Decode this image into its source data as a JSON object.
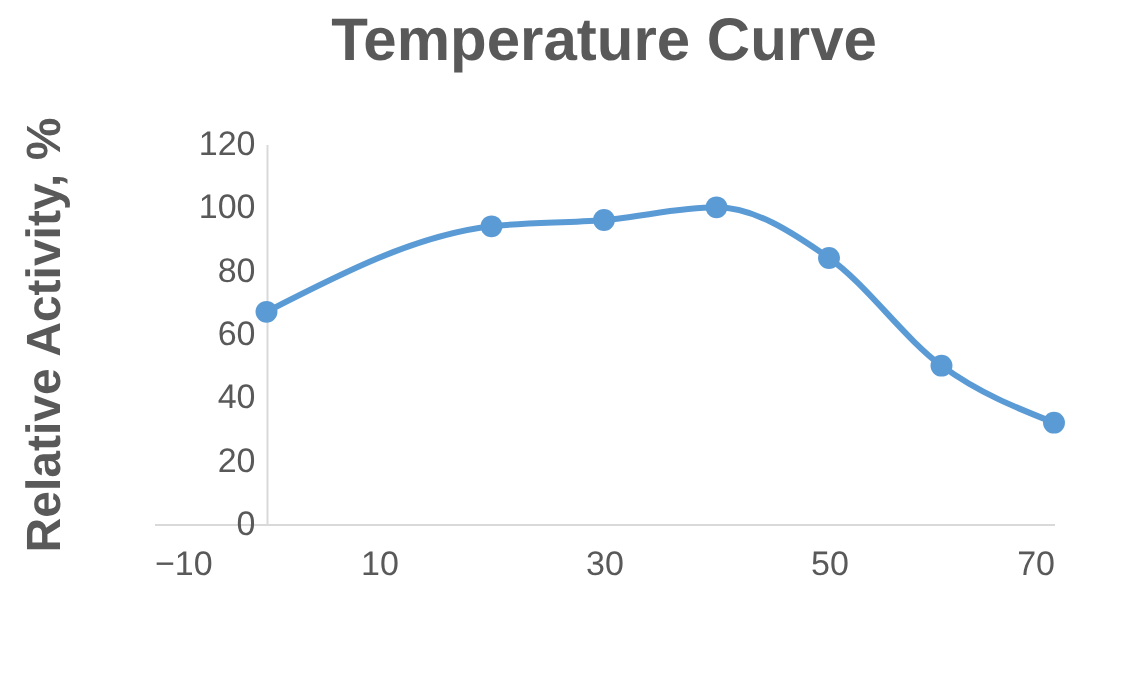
{
  "chart_data": {
    "type": "line",
    "title": "Temperature Curve",
    "ylabel": "Relative Activity, %",
    "x": [
      0,
      20,
      30,
      40,
      50,
      60,
      70
    ],
    "series": [
      {
        "color": "#5b9bd5",
        "values": [
          67,
          94,
          96,
          100,
          84,
          50,
          32
        ]
      }
    ],
    "xlim": [
      -10,
      70
    ],
    "xticks": [
      -10,
      10,
      30,
      50,
      70
    ],
    "ylim": [
      0,
      120
    ],
    "yticks": [
      0,
      20,
      40,
      60,
      80,
      100,
      120
    ],
    "grid": false,
    "legend": false,
    "marker": "circle",
    "line_style": "solid"
  }
}
